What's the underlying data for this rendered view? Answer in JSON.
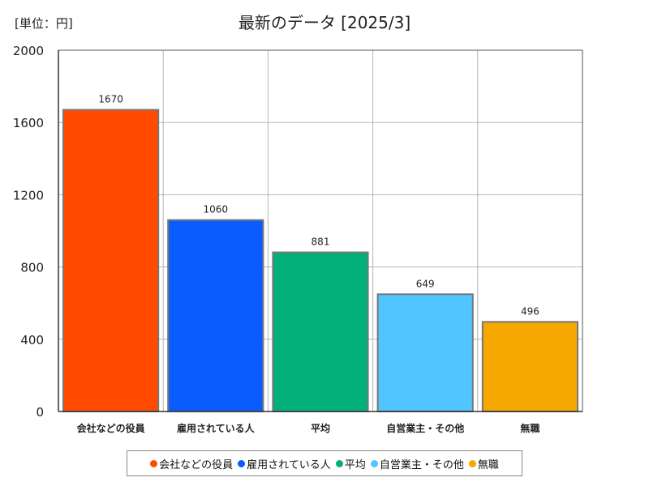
{
  "unit_label": "[単位：円]",
  "chart_data": {
    "type": "bar",
    "title": "最新のデータ [2025/3]",
    "categories": [
      "会社などの役員",
      "雇用されている人",
      "平均",
      "自営業主・その他",
      "無職"
    ],
    "values": [
      1670,
      1060,
      881,
      649,
      496
    ],
    "colors": [
      "#ff4a00",
      "#0a5cff",
      "#02b07a",
      "#50c5ff",
      "#f5a800"
    ],
    "yticks": [
      "0",
      "400",
      "800",
      "1200",
      "1600",
      "2000"
    ],
    "ylim": [
      0,
      2000
    ],
    "grid": true,
    "legend_position": "bottom"
  }
}
